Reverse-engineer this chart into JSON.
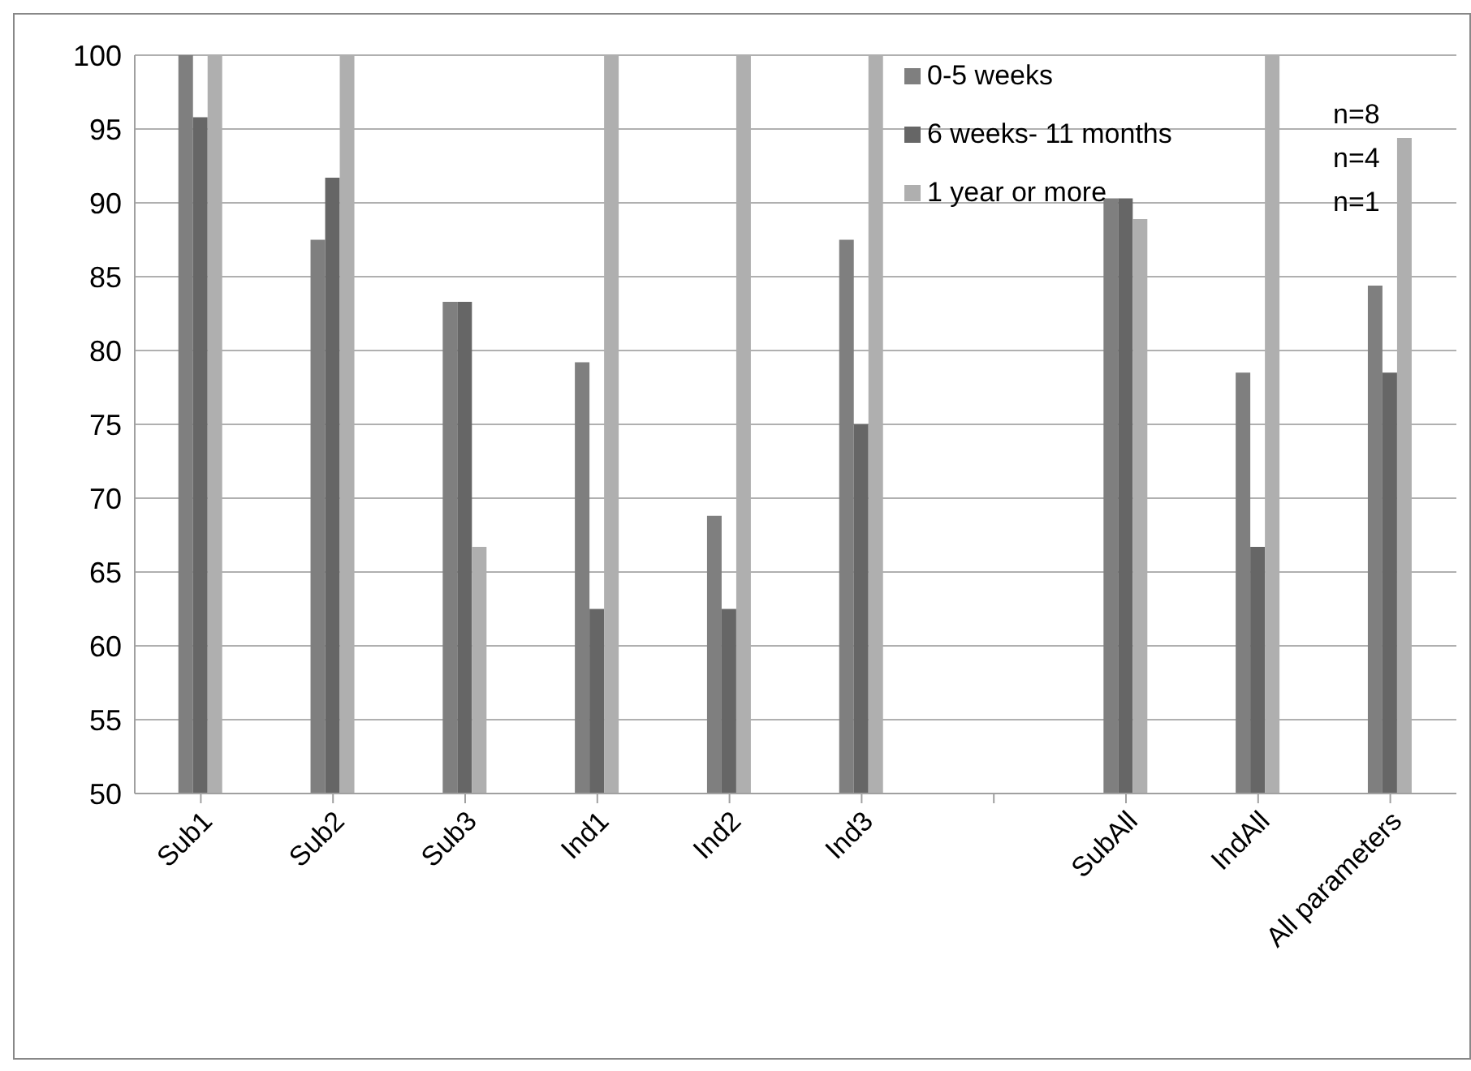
{
  "chart_data": {
    "type": "bar",
    "categories": [
      "Sub1",
      "Sub2",
      "Sub3",
      "Ind1",
      "Ind2",
      "Ind3",
      null,
      "SubAll",
      "IndAll",
      "All parameters"
    ],
    "series": [
      {
        "name": "0-5 weeks",
        "color": "#7f7f7f",
        "values": [
          100,
          87.5,
          83.3,
          79.2,
          68.8,
          87.5,
          null,
          90.3,
          78.5,
          84.4
        ]
      },
      {
        "name": "6 weeks- 11 months",
        "color": "#666666",
        "values": [
          95.8,
          91.7,
          83.3,
          62.5,
          62.5,
          75,
          null,
          90.3,
          66.7,
          78.5
        ]
      },
      {
        "name": "1 year or more",
        "color": "#afafaf",
        "values": [
          100,
          100,
          66.7,
          100,
          100,
          100,
          null,
          88.9,
          100,
          94.4
        ]
      }
    ],
    "ylim": [
      50,
      100
    ],
    "yticks": [
      50,
      55,
      60,
      65,
      70,
      75,
      80,
      85,
      90,
      95,
      100
    ],
    "grid": "y",
    "legend": "top right",
    "annotations": [
      "n=8",
      "n=4",
      "n=1"
    ]
  }
}
